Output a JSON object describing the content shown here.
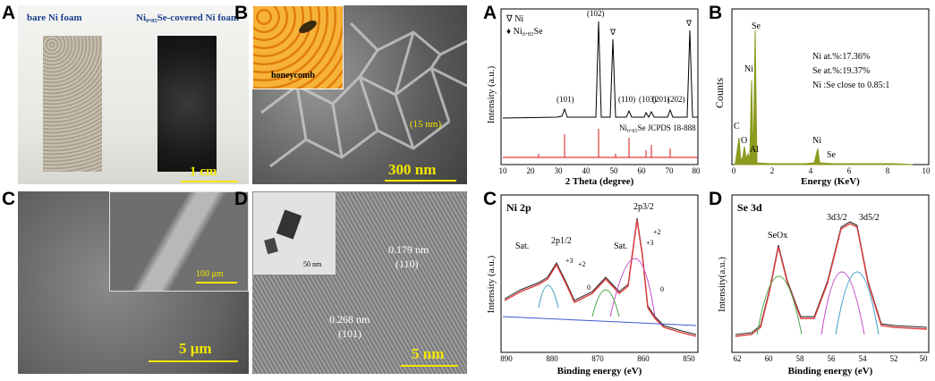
{
  "panels": {
    "a1": {
      "letter": "A",
      "left_caption": "bare Ni foam",
      "right_caption": "Ni₀.₈₅Se-covered Ni foam",
      "scale": "1 cm"
    },
    "b1": {
      "letter": "B",
      "inset_caption": "honeycomb",
      "thickness": "(15 nm)",
      "scale": "300 nm"
    },
    "c1": {
      "letter": "C",
      "inset_scale": "100 μm",
      "scale": "5 μm"
    },
    "d1": {
      "letter": "D",
      "inset_scale": "50 nm",
      "fringe_top": "0.179 nm",
      "hkl_top": "(110)",
      "fringe_bottom": "0.268 nm",
      "hkl_bottom": "(101)",
      "scale": "5 nm"
    },
    "a2": {
      "letter": "A"
    },
    "b2": {
      "letter": "B"
    },
    "c2": {
      "letter": "C"
    },
    "d2": {
      "letter": "D"
    }
  },
  "xrd": {
    "ylabel": "Intensity (a.u.)",
    "xlabel": "2 Theta (degree)",
    "ticks": [
      "10",
      "20",
      "30",
      "40",
      "50",
      "60",
      "70",
      "80"
    ],
    "legend_ni": "∇ Ni",
    "legend_ni_se": "♦ Ni₀.₈₅Se",
    "ref_label": "Ni₀.₈₅Se JCPDS 18-888",
    "peak_labels": {
      "p101": "(101)",
      "p102": "(102)",
      "p110": "(110)",
      "p103": "(103)",
      "p201": "(201)",
      "p202": "(202)"
    },
    "nabla": "∇"
  },
  "eds": {
    "ylabel": "Counts",
    "xlabel": "Energy (KeV)",
    "ticks": [
      "0",
      "2",
      "4",
      "6",
      "8",
      "10"
    ],
    "elements": {
      "se": "Se",
      "ni": "Ni",
      "c": "C",
      "o": "O",
      "al": "Al",
      "ni2": "Ni",
      "se2": "Se"
    },
    "stat1": "Ni at.%:17.36%",
    "stat2": "Se at.%:19.37%",
    "stat3": "Ni :Se close to 0.85:1",
    "color": "#8c9a1e"
  },
  "ni2p": {
    "title": "Ni 2p",
    "ylabel": "Intensity (a.u.)",
    "xlabel": "Binding energy (eV)",
    "ticks": [
      "890",
      "880",
      "870",
      "860",
      "850"
    ],
    "labels": {
      "sat1": "Sat.",
      "p12": "2p1/2",
      "sat2": "Sat.",
      "p32": "2p3/2",
      "n3a": "+3",
      "n2a": "+2",
      "n0a": "0",
      "n3b": "+3",
      "n2b": "+2",
      "n0b": "0"
    }
  },
  "se3d": {
    "title": "Se 3d",
    "ylabel": "Intensity(a.u.)",
    "xlabel": "Binding energy (eV)",
    "ticks": [
      "62",
      "60",
      "58",
      "56",
      "54",
      "52",
      "50"
    ],
    "labels": {
      "seox": "SeOx",
      "d32": "3d3/2",
      "d52": "3d5/2"
    }
  },
  "colors": {
    "scalebar": "#f2e600",
    "honeycomb": "#f39b1e",
    "red": "#e03a3a"
  }
}
